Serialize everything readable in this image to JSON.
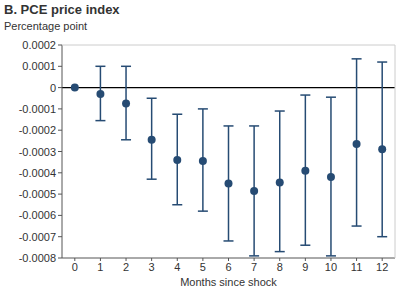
{
  "chart_data": {
    "type": "scatter",
    "title": "B. PCE price index",
    "y_label": "Percentage point",
    "x_label": "Months since shock",
    "categories": [
      "0",
      "1",
      "2",
      "3",
      "4",
      "5",
      "6",
      "7",
      "8",
      "9",
      "10",
      "11",
      "12"
    ],
    "series": [
      {
        "name": "PCE price index",
        "color": "#264b73",
        "marker": "circle",
        "values": [
          0,
          -3e-05,
          -7.5e-05,
          -0.000245,
          -0.00034,
          -0.000345,
          -0.00045,
          -0.000485,
          -0.000445,
          -0.00039,
          -0.00042,
          -0.000265,
          -0.00029
        ],
        "lower": [
          0,
          -0.000155,
          -0.000245,
          -0.00043,
          -0.00055,
          -0.00058,
          -0.00072,
          -0.00079,
          -0.00077,
          -0.00074,
          -0.00079,
          -0.00065,
          -0.0007
        ],
        "upper": [
          0,
          0.0001,
          0.0001,
          -5e-05,
          -0.000125,
          -0.0001,
          -0.00018,
          -0.00018,
          -0.00011,
          -3.5e-05,
          -4.5e-05,
          0.000135,
          0.00012
        ]
      }
    ],
    "ylim": [
      -0.0008,
      0.0002
    ],
    "yticks": [
      0.0002,
      0.0001,
      0,
      -0.0001,
      -0.0002,
      -0.0003,
      -0.0004,
      -0.0005,
      -0.0006,
      -0.0007,
      -0.0008
    ]
  }
}
